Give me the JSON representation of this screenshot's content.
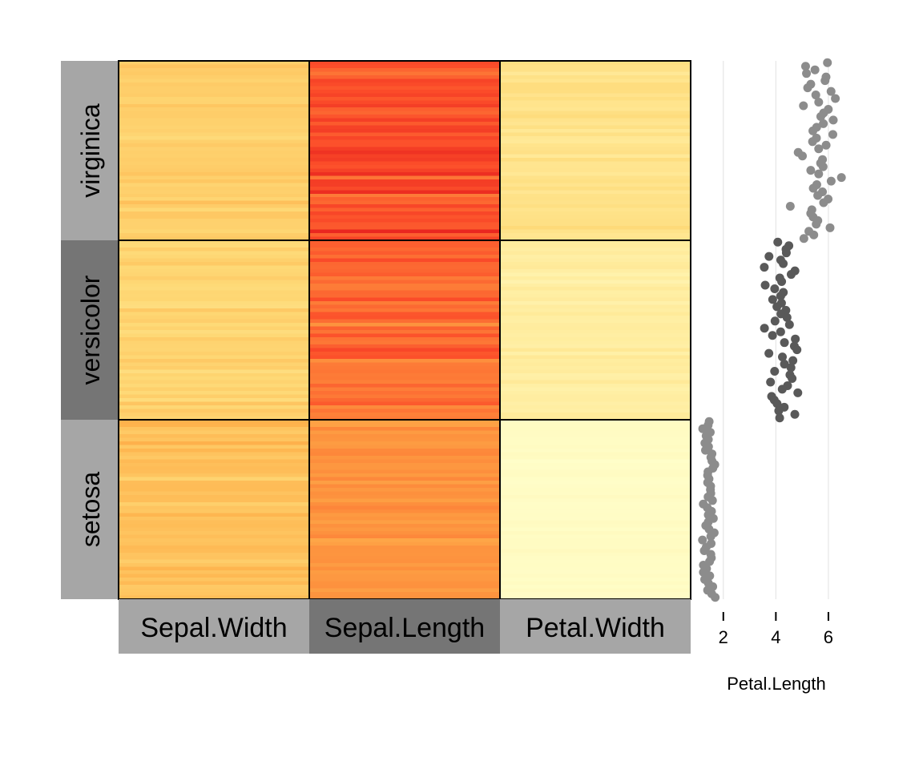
{
  "chart_data": {
    "type": "heatmap",
    "heatmap": {
      "row_groups": [
        "virginica",
        "versicolor",
        "setosa"
      ],
      "columns": [
        "Sepal.Width",
        "Sepal.Length",
        "Petal.Width"
      ],
      "group_colors": {
        "virginica": "#a6a6a6",
        "versicolor": "#757575",
        "setosa": "#a6a6a6"
      },
      "column_colors": {
        "Sepal.Width": "#a6a6a6",
        "Sepal.Length": "#757575",
        "Petal.Width": "#a6a6a6"
      },
      "value_range": [
        0,
        7.9
      ],
      "palette": [
        "#ffffcc",
        "#ffeda0",
        "#fed976",
        "#feb24c",
        "#fd8d3c",
        "#fc4e2a",
        "#e31a1c"
      ],
      "grid_line_color": "#000000",
      "rows_per_group": 50
    },
    "side_plot": {
      "type": "scatter",
      "xlabel": "Petal.Length",
      "xticks": [
        2,
        4,
        6
      ],
      "xlim": [
        1.0,
        7.1
      ],
      "gridlines": true,
      "point_colors": {
        "virginica": "#8c8c8c",
        "versicolor": "#595959",
        "setosa": "#8c8c8c"
      }
    }
  }
}
